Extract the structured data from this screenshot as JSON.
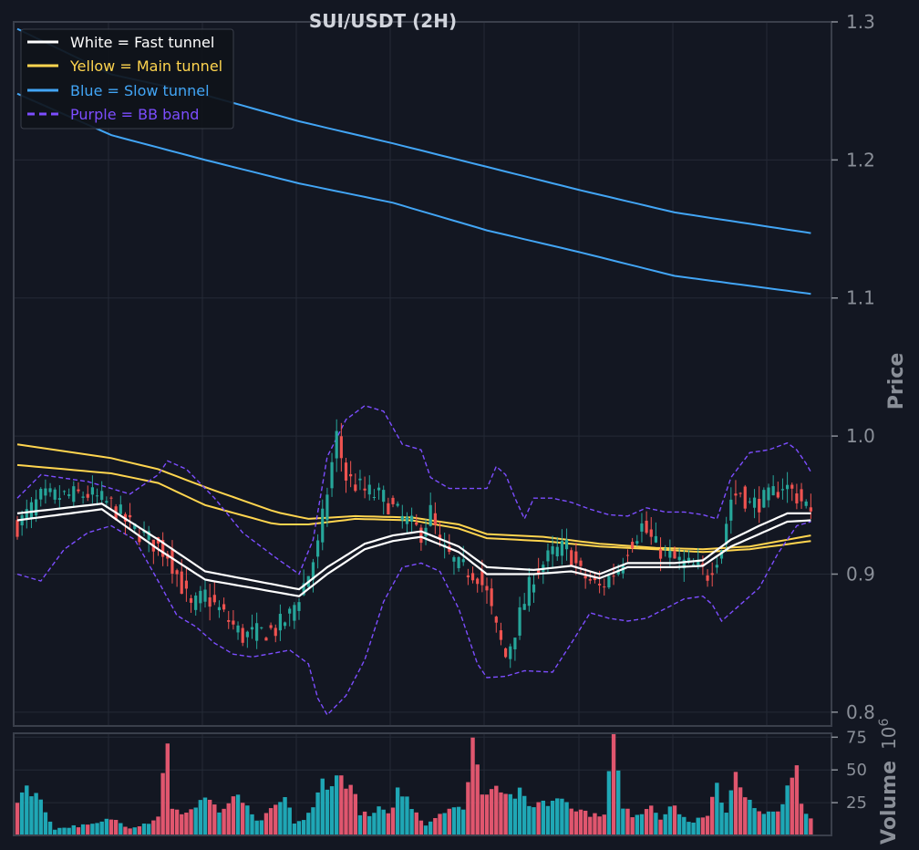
{
  "colors": {
    "background": "#131722",
    "grid": "#242a36",
    "frame": "#3a3f4b",
    "up": "#26a69a",
    "down": "#ef5350",
    "vol_up": "#1fa7b5",
    "vol_down": "#e0566e",
    "fast": "#ffffff",
    "main": "#ffd54f",
    "slow": "#42a5f5",
    "bb": "#7c4dff"
  },
  "chart_data": {
    "type": "candlestick",
    "title": "SUI/USDT (2H)",
    "price_axis": {
      "label": "Price",
      "ylim": [
        0.79,
        1.3
      ],
      "ticks": [
        "0.8",
        "0.9",
        "1.0",
        "1.1",
        "1.2",
        "1.3"
      ]
    },
    "volume_axis": {
      "label": "Volume",
      "multiplier": "10^6",
      "ylim": [
        0,
        78
      ],
      "ticks": [
        "25",
        "50",
        "75"
      ]
    },
    "grid": true,
    "legend_position": "top-left",
    "legend": [
      {
        "label": "White = Fast tunnel",
        "color": "#ffffff",
        "style": "solid"
      },
      {
        "label": "Yellow = Main tunnel",
        "color": "#ffd54f",
        "style": "solid"
      },
      {
        "label": "Blue = Slow tunnel",
        "color": "#42a5f5",
        "style": "solid"
      },
      {
        "label": "Purple = BB band",
        "color": "#7c4dff",
        "style": "dashed"
      }
    ],
    "bar_count": 170,
    "close_anchors": [
      [
        0,
        0.935
      ],
      [
        5,
        0.955
      ],
      [
        15,
        0.958
      ],
      [
        20,
        0.95
      ],
      [
        24,
        0.935
      ],
      [
        28,
        0.925
      ],
      [
        32,
        0.915
      ],
      [
        34,
        0.9
      ],
      [
        37,
        0.875
      ],
      [
        40,
        0.885
      ],
      [
        44,
        0.87
      ],
      [
        48,
        0.855
      ],
      [
        55,
        0.86
      ],
      [
        58,
        0.87
      ],
      [
        62,
        0.9
      ],
      [
        64,
        0.92
      ],
      [
        66,
        0.96
      ],
      [
        68,
        1.0
      ],
      [
        70,
        0.97
      ],
      [
        74,
        0.96
      ],
      [
        78,
        0.955
      ],
      [
        82,
        0.94
      ],
      [
        86,
        0.93
      ],
      [
        88,
        0.945
      ],
      [
        90,
        0.92
      ],
      [
        94,
        0.905
      ],
      [
        98,
        0.9
      ],
      [
        100,
        0.885
      ],
      [
        102,
        0.86
      ],
      [
        104,
        0.84
      ],
      [
        106,
        0.86
      ],
      [
        108,
        0.88
      ],
      [
        110,
        0.9
      ],
      [
        114,
        0.915
      ],
      [
        117,
        0.92
      ],
      [
        120,
        0.9
      ],
      [
        124,
        0.89
      ],
      [
        128,
        0.905
      ],
      [
        130,
        0.92
      ],
      [
        133,
        0.935
      ],
      [
        136,
        0.92
      ],
      [
        140,
        0.91
      ],
      [
        144,
        0.905
      ],
      [
        147,
        0.9
      ],
      [
        150,
        0.92
      ],
      [
        152,
        0.955
      ],
      [
        154,
        0.96
      ],
      [
        156,
        0.95
      ],
      [
        160,
        0.955
      ],
      [
        163,
        0.965
      ],
      [
        165,
        0.96
      ],
      [
        168,
        0.95
      ],
      [
        169,
        0.94
      ]
    ],
    "fast_tunnel": {
      "upper": [
        [
          0,
          0.944
        ],
        [
          18,
          0.951
        ],
        [
          30,
          0.925
        ],
        [
          40,
          0.902
        ],
        [
          60,
          0.889
        ],
        [
          66,
          0.905
        ],
        [
          74,
          0.922
        ],
        [
          80,
          0.928
        ],
        [
          86,
          0.931
        ],
        [
          94,
          0.92
        ],
        [
          100,
          0.905
        ],
        [
          110,
          0.903
        ],
        [
          118,
          0.906
        ],
        [
          124,
          0.9
        ],
        [
          130,
          0.908
        ],
        [
          140,
          0.908
        ],
        [
          146,
          0.91
        ],
        [
          152,
          0.925
        ],
        [
          158,
          0.935
        ],
        [
          164,
          0.944
        ],
        [
          169,
          0.944
        ]
      ],
      "lower": [
        [
          0,
          0.939
        ],
        [
          18,
          0.947
        ],
        [
          30,
          0.918
        ],
        [
          40,
          0.896
        ],
        [
          60,
          0.884
        ],
        [
          66,
          0.9
        ],
        [
          74,
          0.918
        ],
        [
          80,
          0.924
        ],
        [
          86,
          0.927
        ],
        [
          94,
          0.916
        ],
        [
          100,
          0.9
        ],
        [
          110,
          0.9
        ],
        [
          118,
          0.902
        ],
        [
          124,
          0.897
        ],
        [
          130,
          0.905
        ],
        [
          140,
          0.905
        ],
        [
          146,
          0.906
        ],
        [
          152,
          0.92
        ],
        [
          158,
          0.929
        ],
        [
          164,
          0.938
        ],
        [
          169,
          0.939
        ]
      ]
    },
    "main_tunnel": {
      "upper": [
        [
          0,
          0.994
        ],
        [
          20,
          0.984
        ],
        [
          30,
          0.976
        ],
        [
          40,
          0.963
        ],
        [
          55,
          0.945
        ],
        [
          62,
          0.94
        ],
        [
          72,
          0.942
        ],
        [
          84,
          0.941
        ],
        [
          94,
          0.936
        ],
        [
          100,
          0.929
        ],
        [
          112,
          0.927
        ],
        [
          124,
          0.922
        ],
        [
          136,
          0.919
        ],
        [
          146,
          0.918
        ],
        [
          156,
          0.92
        ],
        [
          169,
          0.928
        ]
      ],
      "lower": [
        [
          0,
          0.979
        ],
        [
          20,
          0.973
        ],
        [
          30,
          0.966
        ],
        [
          40,
          0.95
        ],
        [
          55,
          0.936
        ],
        [
          62,
          0.936
        ],
        [
          72,
          0.94
        ],
        [
          84,
          0.939
        ],
        [
          94,
          0.933
        ],
        [
          100,
          0.926
        ],
        [
          112,
          0.924
        ],
        [
          124,
          0.92
        ],
        [
          136,
          0.918
        ],
        [
          146,
          0.916
        ],
        [
          156,
          0.918
        ],
        [
          169,
          0.924
        ]
      ]
    },
    "slow_tunnel": {
      "upper": [
        [
          0,
          1.295
        ],
        [
          20,
          1.262
        ],
        [
          40,
          1.247
        ],
        [
          60,
          1.228
        ],
        [
          80,
          1.212
        ],
        [
          100,
          1.195
        ],
        [
          120,
          1.178
        ],
        [
          140,
          1.162
        ],
        [
          169,
          1.147
        ]
      ],
      "lower": [
        [
          0,
          1.248
        ],
        [
          20,
          1.218
        ],
        [
          40,
          1.2
        ],
        [
          60,
          1.183
        ],
        [
          80,
          1.169
        ],
        [
          100,
          1.149
        ],
        [
          120,
          1.133
        ],
        [
          140,
          1.116
        ],
        [
          169,
          1.103
        ]
      ]
    },
    "bb_band": {
      "upper": [
        [
          0,
          0.955
        ],
        [
          5,
          0.972
        ],
        [
          15,
          0.967
        ],
        [
          24,
          0.958
        ],
        [
          30,
          0.972
        ],
        [
          32,
          0.982
        ],
        [
          36,
          0.976
        ],
        [
          42,
          0.955
        ],
        [
          48,
          0.93
        ],
        [
          55,
          0.912
        ],
        [
          60,
          0.9
        ],
        [
          63,
          0.925
        ],
        [
          66,
          0.985
        ],
        [
          70,
          1.012
        ],
        [
          74,
          1.022
        ],
        [
          78,
          1.018
        ],
        [
          82,
          0.994
        ],
        [
          86,
          0.99
        ],
        [
          88,
          0.97
        ],
        [
          92,
          0.962
        ],
        [
          96,
          0.962
        ],
        [
          100,
          0.962
        ],
        [
          102,
          0.978
        ],
        [
          104,
          0.972
        ],
        [
          106,
          0.955
        ],
        [
          108,
          0.94
        ],
        [
          110,
          0.955
        ],
        [
          114,
          0.955
        ],
        [
          118,
          0.952
        ],
        [
          122,
          0.947
        ],
        [
          126,
          0.943
        ],
        [
          130,
          0.942
        ],
        [
          134,
          0.948
        ],
        [
          138,
          0.945
        ],
        [
          142,
          0.945
        ],
        [
          146,
          0.943
        ],
        [
          149,
          0.94
        ],
        [
          152,
          0.97
        ],
        [
          156,
          0.988
        ],
        [
          160,
          0.99
        ],
        [
          164,
          0.995
        ],
        [
          166,
          0.99
        ],
        [
          168,
          0.98
        ],
        [
          169,
          0.974
        ]
      ],
      "lower": [
        [
          0,
          0.9
        ],
        [
          5,
          0.895
        ],
        [
          10,
          0.918
        ],
        [
          15,
          0.93
        ],
        [
          20,
          0.935
        ],
        [
          25,
          0.925
        ],
        [
          30,
          0.895
        ],
        [
          34,
          0.87
        ],
        [
          38,
          0.862
        ],
        [
          42,
          0.85
        ],
        [
          46,
          0.842
        ],
        [
          50,
          0.84
        ],
        [
          55,
          0.843
        ],
        [
          58,
          0.845
        ],
        [
          62,
          0.835
        ],
        [
          64,
          0.81
        ],
        [
          66,
          0.798
        ],
        [
          70,
          0.812
        ],
        [
          74,
          0.838
        ],
        [
          78,
          0.88
        ],
        [
          82,
          0.905
        ],
        [
          86,
          0.908
        ],
        [
          90,
          0.902
        ],
        [
          94,
          0.875
        ],
        [
          98,
          0.835
        ],
        [
          100,
          0.825
        ],
        [
          104,
          0.826
        ],
        [
          108,
          0.83
        ],
        [
          114,
          0.829
        ],
        [
          118,
          0.85
        ],
        [
          122,
          0.872
        ],
        [
          126,
          0.868
        ],
        [
          130,
          0.866
        ],
        [
          134,
          0.868
        ],
        [
          138,
          0.875
        ],
        [
          142,
          0.882
        ],
        [
          146,
          0.884
        ],
        [
          148,
          0.878
        ],
        [
          150,
          0.866
        ],
        [
          154,
          0.878
        ],
        [
          158,
          0.89
        ],
        [
          162,
          0.915
        ],
        [
          166,
          0.935
        ],
        [
          169,
          0.938
        ]
      ]
    },
    "volume_anchors": [
      [
        0,
        28
      ],
      [
        2,
        38
      ],
      [
        4,
        32
      ],
      [
        6,
        18
      ],
      [
        8,
        5
      ],
      [
        12,
        7
      ],
      [
        16,
        8
      ],
      [
        18,
        10
      ],
      [
        20,
        13
      ],
      [
        24,
        6
      ],
      [
        28,
        10
      ],
      [
        30,
        15
      ],
      [
        32,
        76
      ],
      [
        33,
        22
      ],
      [
        35,
        15
      ],
      [
        37,
        18
      ],
      [
        39,
        29
      ],
      [
        41,
        28
      ],
      [
        43,
        18
      ],
      [
        45,
        22
      ],
      [
        47,
        32
      ],
      [
        49,
        20
      ],
      [
        51,
        10
      ],
      [
        53,
        15
      ],
      [
        55,
        22
      ],
      [
        57,
        28
      ],
      [
        59,
        10
      ],
      [
        61,
        12
      ],
      [
        63,
        20
      ],
      [
        65,
        42
      ],
      [
        67,
        40
      ],
      [
        69,
        45
      ],
      [
        71,
        38
      ],
      [
        73,
        18
      ],
      [
        75,
        14
      ],
      [
        77,
        20
      ],
      [
        79,
        15
      ],
      [
        81,
        34
      ],
      [
        83,
        28
      ],
      [
        85,
        18
      ],
      [
        87,
        8
      ],
      [
        89,
        14
      ],
      [
        91,
        20
      ],
      [
        93,
        22
      ],
      [
        95,
        18
      ],
      [
        97,
        76
      ],
      [
        99,
        30
      ],
      [
        101,
        40
      ],
      [
        103,
        38
      ],
      [
        105,
        30
      ],
      [
        107,
        32
      ],
      [
        109,
        22
      ],
      [
        111,
        26
      ],
      [
        113,
        24
      ],
      [
        115,
        30
      ],
      [
        117,
        28
      ],
      [
        119,
        20
      ],
      [
        121,
        18
      ],
      [
        123,
        15
      ],
      [
        125,
        18
      ],
      [
        127,
        74
      ],
      [
        129,
        20
      ],
      [
        131,
        16
      ],
      [
        133,
        18
      ],
      [
        135,
        24
      ],
      [
        137,
        14
      ],
      [
        139,
        22
      ],
      [
        141,
        18
      ],
      [
        143,
        10
      ],
      [
        147,
        14
      ],
      [
        149,
        38
      ],
      [
        151,
        18
      ],
      [
        153,
        52
      ],
      [
        155,
        30
      ],
      [
        157,
        20
      ],
      [
        159,
        15
      ],
      [
        161,
        18
      ],
      [
        163,
        25
      ],
      [
        165,
        42
      ],
      [
        166,
        50
      ],
      [
        167,
        22
      ],
      [
        169,
        12
      ]
    ]
  }
}
